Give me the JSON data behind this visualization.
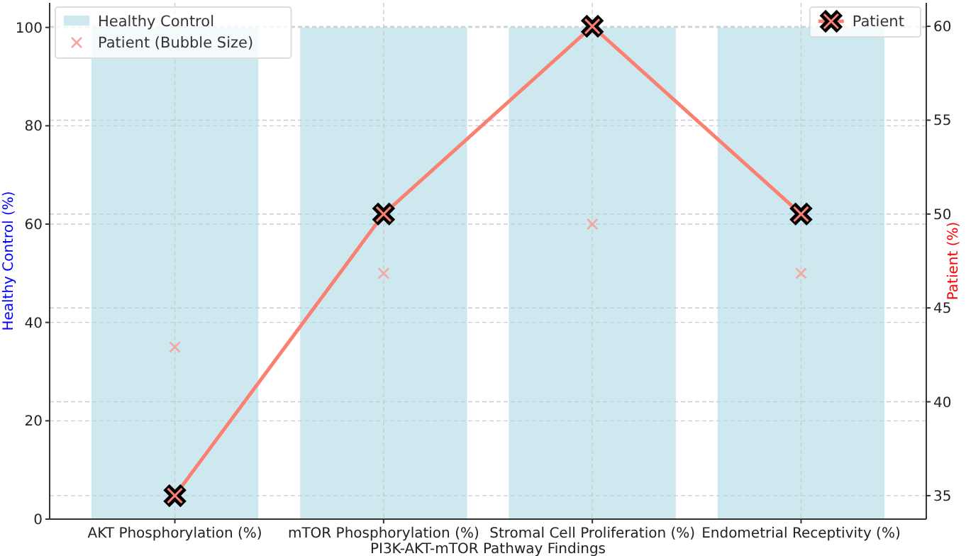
{
  "chart_data": {
    "type": "bar",
    "xlabel": "PI3K-AKT-mTOR Pathway Findings",
    "ylabel": "Healthy Control (%)",
    "y2label": "Patient (%)",
    "categories": [
      "AKT Phosphorylation (%)",
      "mTOR Phosphorylation (%)",
      "Stromal Cell Proliferation (%)",
      "Endometrial Receptivity (%)"
    ],
    "series": [
      {
        "name": "Healthy Control",
        "color": "#add8e6",
        "values": [
          100,
          100,
          100,
          100
        ]
      },
      {
        "name": "Patient (Bubble Size)",
        "type": "scatter",
        "marker": "cross",
        "color": "#f4a6a0",
        "values": [
          35,
          50,
          60,
          50
        ]
      },
      {
        "name": "Patient",
        "type": "line",
        "marker": "cross",
        "axis": "y2",
        "color": "#fa8072",
        "values": [
          35,
          50,
          60,
          50
        ]
      }
    ],
    "ylim": [
      0,
      105
    ],
    "yticks": [
      0,
      20,
      40,
      60,
      80,
      100
    ],
    "y2lim": [
      33.75,
      61.25
    ],
    "y2ticks": [
      35,
      40,
      45,
      50,
      55,
      60
    ],
    "grid": true,
    "legend": "top left"
  }
}
